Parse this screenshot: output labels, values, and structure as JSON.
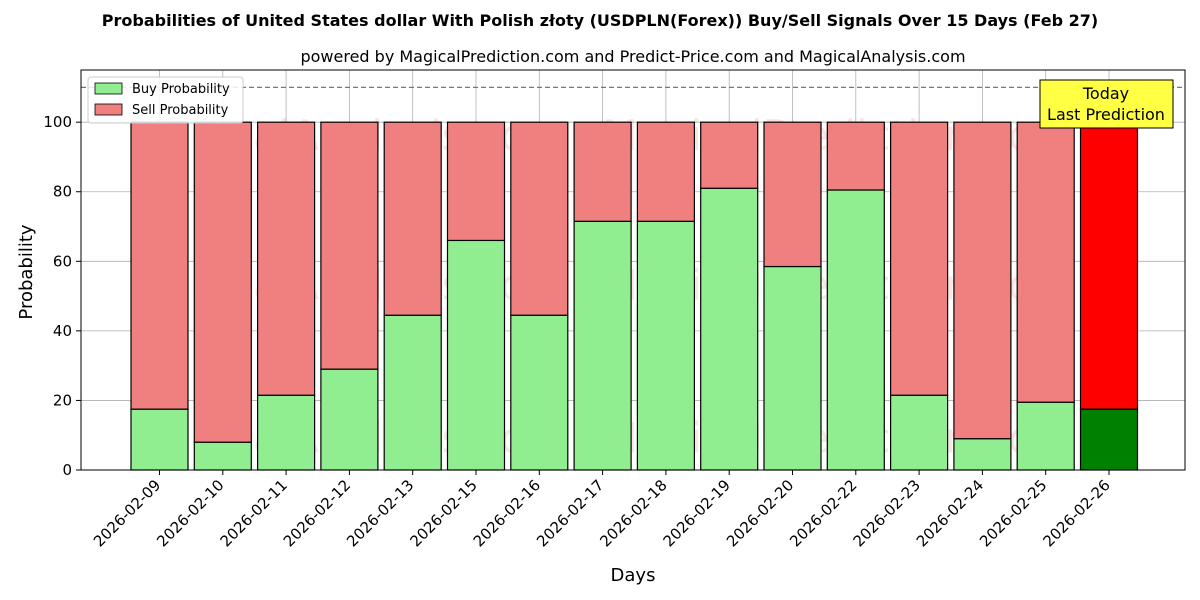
{
  "chart_data": {
    "type": "bar",
    "stacked": true,
    "title": "Probabilities of United States dollar With Polish złoty (USDPLN(Forex)) Buy/Sell Signals Over 15 Days (Feb 27)",
    "subtitle": "powered by MagicalPrediction.com and Predict-Price.com and MagicalAnalysis.com",
    "xlabel": "Days",
    "ylabel": "Probability",
    "ylim": [
      0,
      115
    ],
    "yticks": [
      0,
      20,
      40,
      60,
      80,
      100
    ],
    "reference_line": 110,
    "grid": true,
    "legend_position": "top-left",
    "categories": [
      "2026-02-09",
      "2026-02-10",
      "2026-02-11",
      "2026-02-12",
      "2026-02-13",
      "2026-02-15",
      "2026-02-16",
      "2026-02-17",
      "2026-02-18",
      "2026-02-19",
      "2026-02-20",
      "2026-02-22",
      "2026-02-23",
      "2026-02-24",
      "2026-02-25",
      "2026-02-26"
    ],
    "series": [
      {
        "name": "Buy Probability",
        "color": "#90ee90",
        "values": [
          17.5,
          8,
          21.5,
          29,
          44.5,
          66,
          44.5,
          71.5,
          71.5,
          81,
          58.5,
          80.5,
          21.5,
          9,
          19.5,
          17.5
        ]
      },
      {
        "name": "Sell Probability",
        "color": "#f08080",
        "values": [
          82.5,
          92,
          78.5,
          71,
          55.5,
          34,
          55.5,
          28.5,
          28.5,
          19,
          41.5,
          19.5,
          78.5,
          91,
          80.5,
          82.5
        ]
      }
    ],
    "highlight": {
      "index": 15,
      "buy_color": "#008000",
      "sell_color": "#ff0000",
      "label_line1": "Today",
      "label_line2": "Last Prediction",
      "label_bg": "#ffff44"
    },
    "watermarks": [
      "MagicalAnalysis.com",
      "MagicalPrediction.com"
    ]
  }
}
